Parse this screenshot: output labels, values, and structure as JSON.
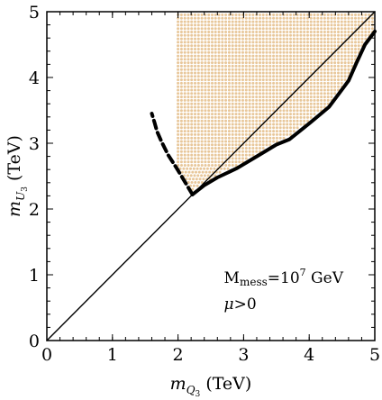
{
  "chart_data": {
    "type": "scatter",
    "xlabel": {
      "base": "m",
      "sub": "Q",
      "subsub": "3",
      "unit": " (TeV)"
    },
    "ylabel": {
      "base": "m",
      "sub": "U",
      "subsub": "3",
      "unit": " (TeV)"
    },
    "xlim": [
      0,
      5
    ],
    "ylim": [
      0,
      5
    ],
    "x_ticks": [
      "0",
      "1",
      "2",
      "3",
      "4",
      "5"
    ],
    "y_ticks": [
      "0",
      "1",
      "2",
      "3",
      "4",
      "5"
    ],
    "annotation_line1": {
      "pre": "M",
      "sub": "mess",
      "mid": "=10",
      "sup": "7",
      "post": " GeV"
    },
    "annotation_line2": {
      "sym": "μ",
      "rest": ">0"
    },
    "colors": {
      "points": "#e8c79a",
      "curves": "#000000",
      "frame": "#000000"
    },
    "diagonal": {
      "x": [
        0,
        5
      ],
      "y": [
        0,
        5
      ]
    },
    "solid_boundary": {
      "x": [
        2.22,
        2.4,
        2.6,
        2.9,
        3.2,
        3.5,
        3.7,
        4.0,
        4.3,
        4.6,
        4.72,
        4.85,
        5.0
      ],
      "y": [
        2.22,
        2.36,
        2.48,
        2.62,
        2.8,
        2.98,
        3.06,
        3.3,
        3.55,
        3.95,
        4.22,
        4.5,
        4.7
      ]
    },
    "dashed_boundary": {
      "x": [
        2.22,
        2.1,
        1.98,
        1.85,
        1.75,
        1.68,
        1.64,
        1.6
      ],
      "y": [
        2.22,
        2.42,
        2.62,
        2.82,
        3.02,
        3.18,
        3.32,
        3.45
      ]
    },
    "region": {
      "x_range": [
        1.6,
        5.0
      ],
      "y_range": [
        2.3,
        4.95
      ],
      "description_series": "allowed parameter points"
    }
  }
}
